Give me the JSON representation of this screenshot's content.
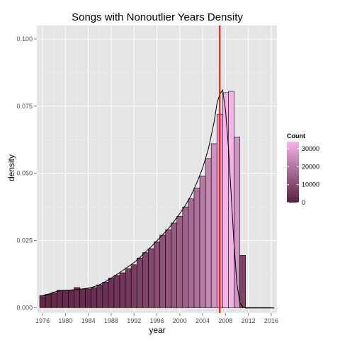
{
  "chart_data": {
    "type": "bar",
    "title": "Songs with Nonoutlier Years Density",
    "xlabel": "year",
    "ylabel": "density",
    "xlim": [
      1975,
      2017
    ],
    "ylim": [
      -0.002,
      0.105
    ],
    "x_ticks": [
      1976,
      1980,
      1984,
      1988,
      1992,
      1996,
      2000,
      2004,
      2008,
      2012,
      2016
    ],
    "y_ticks": [
      0.0,
      0.025,
      0.05,
      0.075,
      0.1
    ],
    "y_tick_labels": [
      "0.000",
      "0.025",
      "0.050",
      "0.075",
      "0.100"
    ],
    "bin_width": 1,
    "bins": {
      "year": [
        1976,
        1977,
        1978,
        1979,
        1980,
        1981,
        1982,
        1983,
        1984,
        1985,
        1986,
        1987,
        1988,
        1989,
        1990,
        1991,
        1992,
        1993,
        1994,
        1995,
        1996,
        1997,
        1998,
        1999,
        2000,
        2001,
        2002,
        2003,
        2004,
        2005,
        2006,
        2007,
        2008,
        2009,
        2010,
        2011,
        2012,
        2013,
        2014,
        2015,
        2016
      ],
      "density": [
        0.0045,
        0.005,
        0.0055,
        0.0065,
        0.0065,
        0.0065,
        0.0075,
        0.007,
        0.007,
        0.0075,
        0.0085,
        0.0095,
        0.011,
        0.012,
        0.013,
        0.0145,
        0.016,
        0.0185,
        0.0205,
        0.022,
        0.0245,
        0.027,
        0.029,
        0.0315,
        0.034,
        0.0375,
        0.0405,
        0.0445,
        0.049,
        0.0555,
        0.061,
        0.072,
        0.08,
        0.0805,
        0.0635,
        0.0195,
        0,
        0,
        0,
        0,
        0
      ]
    },
    "density_curve": {
      "year": [
        1976,
        1977,
        1978,
        1979,
        1980,
        1981,
        1982,
        1983,
        1984,
        1985,
        1986,
        1987,
        1988,
        1989,
        1990,
        1991,
        1992,
        1993,
        1994,
        1995,
        1996,
        1997,
        1998,
        1999,
        2000,
        2001,
        2002,
        2003,
        2004,
        2005,
        2006,
        2006.5,
        2007,
        2007.5,
        2008,
        2008.5,
        2009,
        2009.5,
        2010,
        2010.5,
        2011,
        2011.5,
        2012,
        2013,
        2014,
        2015,
        2016
      ],
      "density": [
        0.0045,
        0.005,
        0.0058,
        0.0063,
        0.0065,
        0.0066,
        0.0068,
        0.007,
        0.0073,
        0.0078,
        0.0086,
        0.0097,
        0.011,
        0.0124,
        0.0138,
        0.0153,
        0.0168,
        0.0187,
        0.0207,
        0.0227,
        0.0249,
        0.0271,
        0.0294,
        0.0321,
        0.035,
        0.0382,
        0.0418,
        0.0466,
        0.052,
        0.059,
        0.069,
        0.076,
        0.0795,
        0.081,
        0.0735,
        0.06,
        0.042,
        0.023,
        0.009,
        0.002,
        0.0003,
        0,
        0,
        0,
        0,
        0,
        0
      ]
    },
    "vline": {
      "x": 2007,
      "color": "#ee0000"
    },
    "fill_low": "#5a1f3f",
    "fill_high": "#f4b4e6",
    "panel_bg": "#e5e5e5",
    "grid": true,
    "legend": {
      "title": "Count",
      "position": "right",
      "breaks": [
        0,
        10000,
        20000,
        30000
      ],
      "labels": [
        "0",
        "10000",
        "20000",
        "30000"
      ],
      "max": 34000
    }
  }
}
